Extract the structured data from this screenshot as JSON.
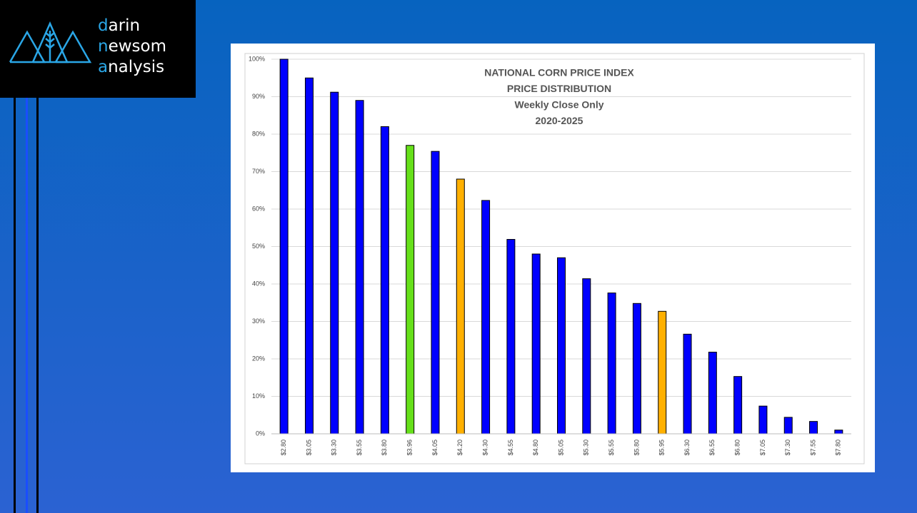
{
  "logo": {
    "lines": [
      "darin",
      "newsom",
      "analysis"
    ]
  },
  "chart_data": {
    "type": "bar",
    "title_lines": [
      "NATIONAL CORN PRICE INDEX",
      "PRICE DISTRIBUTION",
      "Weekly Close Only",
      "2020-2025"
    ],
    "categories": [
      "$2.80",
      "$3.05",
      "$3.30",
      "$3.55",
      "$3.80",
      "$3.96",
      "$4.05",
      "$4.20",
      "$4.30",
      "$4.55",
      "$4.80",
      "$5.05",
      "$5.30",
      "$5.55",
      "$5.80",
      "$5.95",
      "$6.30",
      "$6.55",
      "$6.80",
      "$7.05",
      "$7.30",
      "$7.55",
      "$7.80"
    ],
    "values": [
      100,
      95,
      91.2,
      89,
      82,
      77,
      75.4,
      68,
      62.3,
      51.9,
      48,
      47,
      41.4,
      37.6,
      34.8,
      32.7,
      26.6,
      21.8,
      15.3,
      7.4,
      4.4,
      3.3,
      1
    ],
    "colors": [
      "#0000ff",
      "#0000ff",
      "#0000ff",
      "#0000ff",
      "#0000ff",
      "#66e01a",
      "#0000ff",
      "#ffb000",
      "#0000ff",
      "#0000ff",
      "#0000ff",
      "#0000ff",
      "#0000ff",
      "#0000ff",
      "#0000ff",
      "#ffb000",
      "#0000ff",
      "#0000ff",
      "#0000ff",
      "#0000ff",
      "#0000ff",
      "#0000ff",
      "#0000ff"
    ],
    "ylim": [
      0,
      100
    ],
    "yticks": [
      {
        "value": 0,
        "label": "0%"
      },
      {
        "value": 10,
        "label": "10%"
      },
      {
        "value": 20,
        "label": "20%"
      },
      {
        "value": 30,
        "label": "30%"
      },
      {
        "value": 40,
        "label": "40%"
      },
      {
        "value": 50,
        "label": "50%"
      },
      {
        "value": 60,
        "label": "60%"
      },
      {
        "value": 70,
        "label": "70%"
      },
      {
        "value": 80,
        "label": "80%"
      },
      {
        "value": 90,
        "label": "90%"
      },
      {
        "value": 100,
        "label": "100%"
      }
    ],
    "grid": true
  }
}
